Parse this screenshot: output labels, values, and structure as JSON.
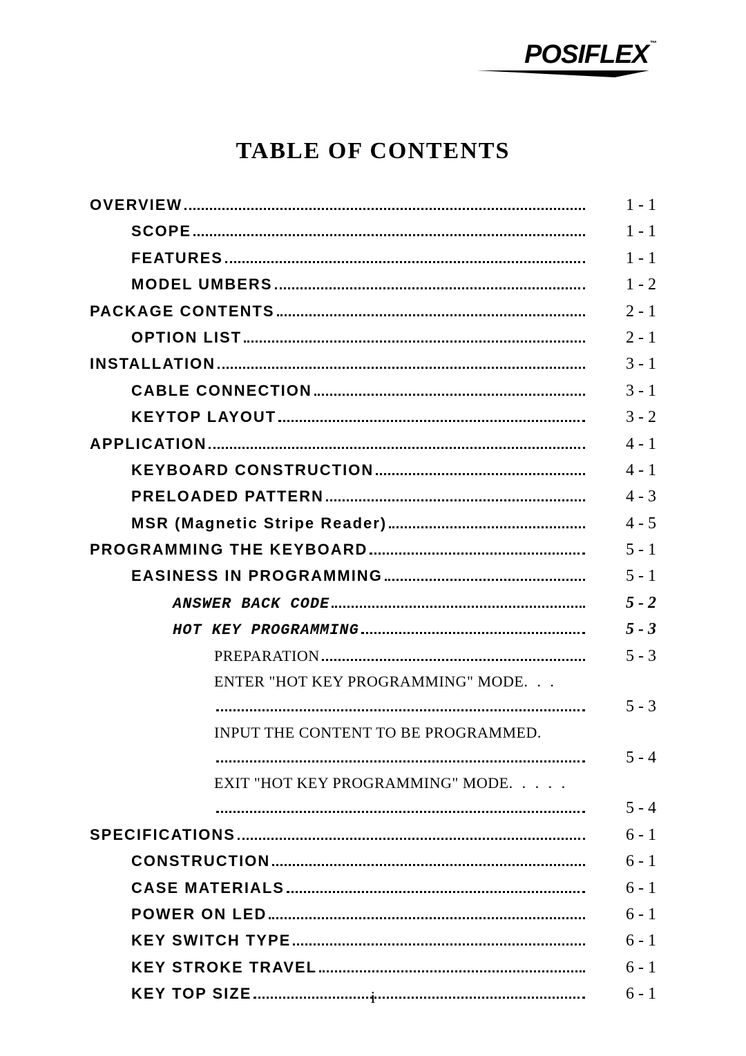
{
  "brand": "POSIFLEX",
  "title": "TABLE OF CONTENTS",
  "title_fontsize": 34,
  "footer": "i",
  "font": {
    "entry_size": 22,
    "page_size": 24
  },
  "colors": {
    "text": "#000000",
    "background": "#ffffff"
  },
  "entries": [
    {
      "label": "OVERVIEW",
      "page": "1   -   1",
      "indent": 0,
      "style": "sans-bold"
    },
    {
      "label": "SCOPE",
      "page": "1   -   1",
      "indent": 1,
      "style": "sans-bold"
    },
    {
      "label": "FEATURES",
      "page": "1   -   1",
      "indent": 1,
      "style": "sans-bold"
    },
    {
      "label": "MODEL UMBERS",
      "page": "1   -   2",
      "indent": 1,
      "style": "sans-bold"
    },
    {
      "label": "PACKAGE CONTENTS",
      "page": "2   -   1",
      "indent": 0,
      "style": "sans-bold"
    },
    {
      "label": "OPTION LIST",
      "page": "2   -   1",
      "indent": 1,
      "style": "sans-bold"
    },
    {
      "label": "INSTALLATION",
      "page": "3   -   1",
      "indent": 0,
      "style": "sans-bold"
    },
    {
      "label": "CABLE CONNECTION",
      "page": "3   -   1",
      "indent": 1,
      "style": "sans-bold"
    },
    {
      "label": "KEYTOP LAYOUT",
      "page": "3   -   2",
      "indent": 1,
      "style": "sans-bold"
    },
    {
      "label": "APPLICATION",
      "page": "4   -   1",
      "indent": 0,
      "style": "sans-bold"
    },
    {
      "label": "KEYBOARD CONSTRUCTION",
      "page": "4   -   1",
      "indent": 1,
      "style": "sans-bold"
    },
    {
      "label": "PRELOADED PATTERN",
      "page": "4   -   3",
      "indent": 1,
      "style": "sans-bold"
    },
    {
      "label": "MSR (Magnetic Stripe Reader)",
      "page": "4   -   5",
      "indent": 1,
      "style": "sans-bold"
    },
    {
      "label": "PROGRAMMING THE KEYBOARD",
      "page": "5   -   1",
      "indent": 0,
      "style": "sans-bold"
    },
    {
      "label": "EASINESS IN PROGRAMMING",
      "page": "5   -   1",
      "indent": 1,
      "style": "sans-bold"
    },
    {
      "label": "ANSWER BACK CODE",
      "page": "5   -   2",
      "indent": 2,
      "style": "mono-italic"
    },
    {
      "label": "HOT KEY PROGRAMMING",
      "page": "5   -   3",
      "indent": 2,
      "style": "mono-italic"
    },
    {
      "label": "PREPARATION",
      "page": "5   -   3",
      "indent": 3,
      "style": "serif"
    },
    {
      "label": "ENTER \"HOT KEY PROGRAMMING\" MODE",
      "page": "5   -   3",
      "indent": 3,
      "style": "serif",
      "wrap": true,
      "trail": ". . ."
    },
    {
      "label": "INPUT THE CONTENT TO BE PROGRAMMED",
      "page": "5   -   4",
      "indent": 3,
      "style": "serif",
      "wrap": true,
      "trail": "."
    },
    {
      "label": "EXIT \"HOT KEY PROGRAMMING\" MODE",
      "page": "5   -   4",
      "indent": 3,
      "style": "serif",
      "wrap": true,
      "trail": ". . . . ."
    },
    {
      "label": "SPECIFICATIONS",
      "page": "6   -   1",
      "indent": 0,
      "style": "sans-bold"
    },
    {
      "label": "CONSTRUCTION",
      "page": "6   -   1",
      "indent": 1,
      "style": "sans-bold"
    },
    {
      "label": "CASE MATERIALS",
      "page": "6   -   1",
      "indent": 1,
      "style": "sans-bold"
    },
    {
      "label": "POWER ON LED",
      "page": "6   -   1",
      "indent": 1,
      "style": "sans-bold"
    },
    {
      "label": "KEY SWITCH TYPE",
      "page": "6   -   1",
      "indent": 1,
      "style": "sans-bold"
    },
    {
      "label": "KEY STROKE TRAVEL",
      "page": "6   -   1",
      "indent": 1,
      "style": "sans-bold"
    },
    {
      "label": "KEY TOP SIZE",
      "page": "6   -   1",
      "indent": 1,
      "style": "sans-bold"
    }
  ]
}
